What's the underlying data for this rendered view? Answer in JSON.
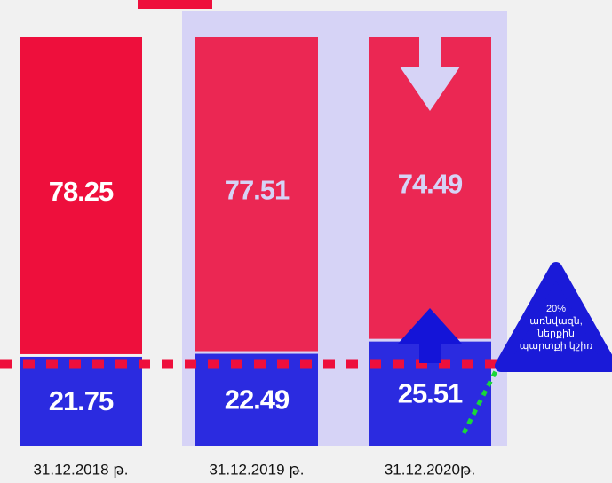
{
  "chart_data": {
    "type": "stacked_bar",
    "categories": [
      "31.12.2018 թ.",
      "31.12.2019 թ.",
      "31.12.2020թ."
    ],
    "series": [
      {
        "name": null,
        "color": "#2b2be0",
        "values": [
          21.75,
          22.49,
          25.51
        ]
      },
      {
        "name": null,
        "color": "#ee0f3c",
        "values": [
          78.25,
          77.51,
          74.49
        ]
      }
    ],
    "ylim": [
      0,
      100
    ],
    "reference_value": 20,
    "reference_color": "#ee0f3c",
    "annotation": [
      "20%",
      "առնվազն,",
      "ներքին",
      "պարտքի կշիռ"
    ]
  }
}
